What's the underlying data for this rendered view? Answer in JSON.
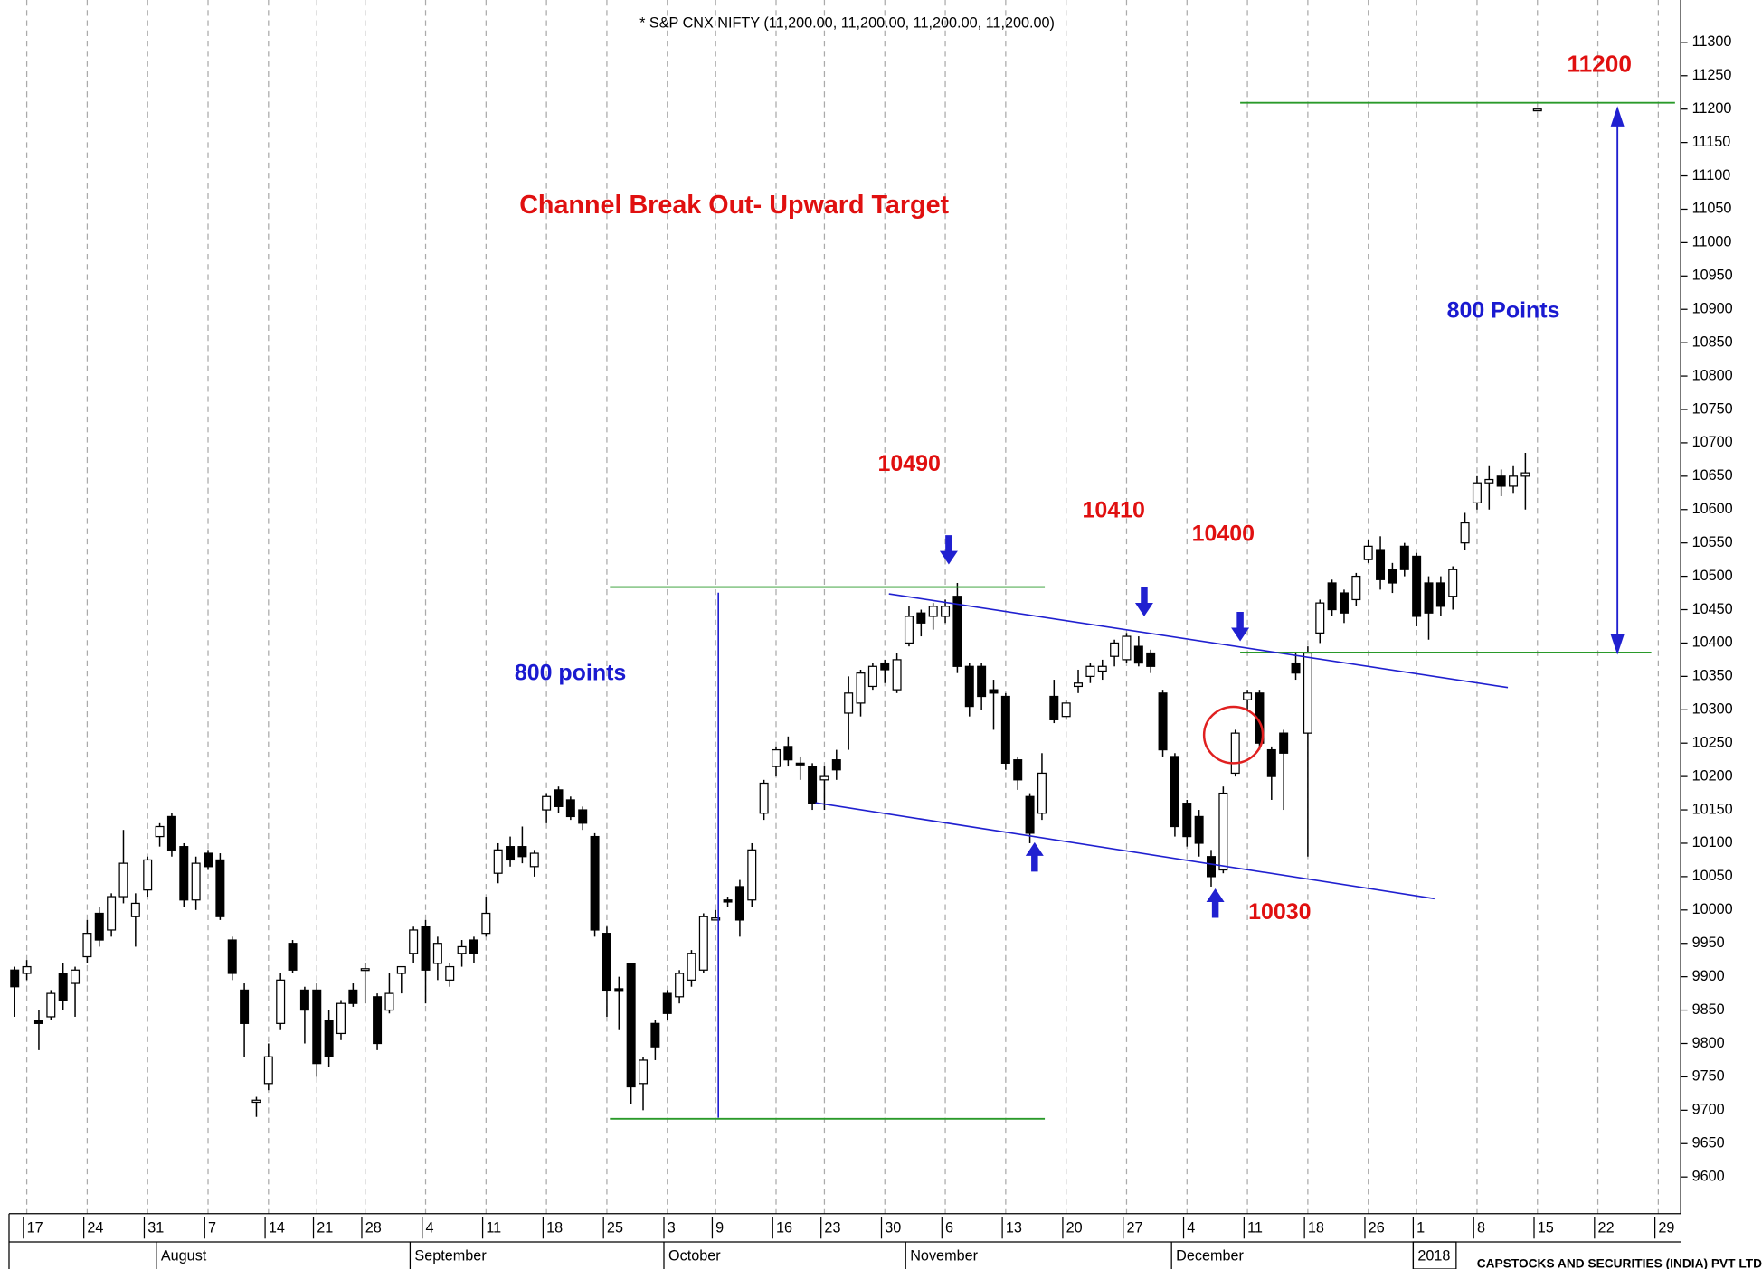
{
  "chart_data": {
    "type": "candlestick",
    "title": "* S&P CNX NIFTY (11,200.00, 11,200.00, 11,200.00, 11,200.00)",
    "annotations": [
      "Channel Break Out- Upward Target",
      "800 points",
      "800 Points",
      "10490",
      "10410",
      "10400",
      "10030",
      "11200"
    ],
    "footer": "CAPSTOCKS AND SECURITIES (INDIA) PVT LTD",
    "months": [
      "August",
      "September",
      "October",
      "November",
      "December",
      "2018"
    ],
    "categories": [
      null,
      "17",
      null,
      null,
      null,
      null,
      "24",
      null,
      null,
      null,
      null,
      "31",
      null,
      null,
      null,
      null,
      "7",
      null,
      null,
      null,
      null,
      "14",
      null,
      null,
      null,
      "21",
      null,
      null,
      null,
      "28",
      null,
      null,
      null,
      null,
      "4",
      null,
      null,
      null,
      null,
      "11",
      null,
      null,
      null,
      null,
      "18",
      null,
      null,
      null,
      null,
      "25",
      null,
      null,
      null,
      null,
      "3",
      null,
      null,
      null,
      "9",
      null,
      null,
      null,
      null,
      "16",
      null,
      null,
      null,
      "23",
      null,
      null,
      null,
      null,
      "30",
      null,
      null,
      null,
      null,
      "6",
      null,
      null,
      null,
      null,
      "13",
      null,
      null,
      null,
      null,
      "20",
      null,
      null,
      null,
      null,
      "27",
      null,
      null,
      null,
      null,
      "4",
      null,
      null,
      null,
      null,
      "11",
      null,
      null,
      null,
      null,
      "18",
      null,
      null,
      null,
      null,
      "26",
      null,
      null,
      null,
      "1",
      null,
      null,
      null,
      null,
      "8",
      null,
      null,
      null,
      null,
      "15",
      null,
      null,
      null,
      null,
      "22",
      null,
      null,
      null,
      null,
      "29",
      null
    ],
    "open": [
      9910,
      9905,
      9835,
      9840,
      9905,
      9890,
      9930,
      9995,
      9970,
      10020,
      9990,
      10030,
      10110,
      10140,
      10095,
      10015,
      10085,
      10075,
      9955,
      9880,
      9712,
      9740,
      9830,
      9950,
      9880,
      9880,
      9835,
      9815,
      9880,
      9910,
      9870,
      9850,
      9905,
      9935,
      9975,
      9920,
      9895,
      9935,
      9955,
      9965,
      10055,
      10095,
      10095,
      10065,
      10150,
      10180,
      10165,
      10150,
      10110,
      9965,
      9882,
      9920,
      9740,
      9830,
      9875,
      9870,
      9895,
      9910,
      9985,
      10015,
      10035,
      10015,
      10145,
      10215,
      10245,
      10220,
      10215,
      10195,
      10225,
      10295,
      10310,
      10335,
      10370,
      10330,
      10400,
      10445,
      10440,
      10440,
      10470,
      10365,
      10365,
      10330,
      10320,
      10225,
      10170,
      10145,
      10320,
      10290,
      10335,
      10350,
      10358,
      10380,
      10375,
      10395,
      10385,
      10325,
      10230,
      10160,
      10140,
      10080,
      10060,
      10205,
      10315,
      10325,
      10240,
      10265,
      10370,
      10265,
      10415,
      10490,
      10475,
      10465,
      10525,
      10540,
      10510,
      10545,
      10530,
      10490,
      10490,
      10470,
      10550,
      10610,
      10640,
      10650,
      10635,
      10650,
      11200,
      null,
      null,
      null,
      null,
      null,
      null,
      null,
      null,
      null,
      null,
      null
    ],
    "high": [
      9915,
      9925,
      9850,
      9880,
      9920,
      9915,
      9985,
      10005,
      10025,
      10120,
      10025,
      10080,
      10130,
      10145,
      10100,
      10080,
      10090,
      10085,
      9960,
      9890,
      9720,
      9800,
      9905,
      9955,
      9885,
      9890,
      9850,
      9865,
      9890,
      9920,
      9875,
      9905,
      9915,
      9975,
      9985,
      9960,
      9920,
      9955,
      9960,
      10020,
      10100,
      10110,
      10125,
      10090,
      10175,
      10185,
      10170,
      10155,
      10115,
      9975,
      9900,
      9920,
      9780,
      9835,
      9880,
      9910,
      9940,
      9995,
      10000,
      10020,
      10045,
      10100,
      10195,
      10245,
      10260,
      10230,
      10220,
      10215,
      10240,
      10350,
      10360,
      10370,
      10375,
      10385,
      10455,
      10450,
      10460,
      10465,
      10490,
      10370,
      10370,
      10345,
      10325,
      10230,
      10175,
      10235,
      10345,
      10315,
      10360,
      10370,
      10375,
      10405,
      10415,
      10410,
      10390,
      10330,
      10235,
      10165,
      10150,
      10090,
      10185,
      10270,
      10330,
      10330,
      10245,
      10270,
      10385,
      10395,
      10465,
      10495,
      10480,
      10505,
      10555,
      10560,
      10520,
      10550,
      10535,
      10500,
      10500,
      10515,
      10595,
      10650,
      10665,
      10660,
      10665,
      10685,
      11200,
      null,
      null,
      null,
      null,
      null,
      null,
      null,
      null,
      null,
      null,
      null
    ],
    "low": [
      9840,
      9895,
      9790,
      9835,
      9850,
      9840,
      9920,
      9945,
      9960,
      10010,
      9945,
      10020,
      10095,
      10080,
      10005,
      10000,
      10060,
      9985,
      9895,
      9780,
      9690,
      9730,
      9820,
      9905,
      9800,
      9750,
      9765,
      9805,
      9855,
      9860,
      9790,
      9845,
      9875,
      9920,
      9860,
      9895,
      9885,
      9915,
      9920,
      9960,
      10040,
      10065,
      10070,
      10050,
      10130,
      10145,
      10135,
      10120,
      9960,
      9840,
      9820,
      9710,
      9700,
      9775,
      9835,
      9860,
      9885,
      9905,
      9985,
      10005,
      9960,
      10005,
      10135,
      10200,
      10215,
      10195,
      10150,
      10150,
      10195,
      10240,
      10290,
      10330,
      10340,
      10325,
      10395,
      10410,
      10420,
      10430,
      10355,
      10290,
      10300,
      10270,
      10210,
      10180,
      10100,
      10135,
      10280,
      10285,
      10325,
      10340,
      10345,
      10365,
      10370,
      10365,
      10355,
      10230,
      10110,
      10095,
      10080,
      10035,
      10055,
      10200,
      10300,
      10240,
      10165,
      10150,
      10345,
      10080,
      10400,
      10440,
      10430,
      10455,
      10520,
      10480,
      10475,
      10500,
      10425,
      10405,
      10440,
      10450,
      10540,
      10600,
      10600,
      10620,
      10625,
      10600,
      11200,
      null,
      null,
      null,
      null,
      null,
      null,
      null,
      null,
      null,
      null,
      null
    ],
    "close": [
      9885,
      9915,
      9830,
      9875,
      9865,
      9910,
      9965,
      9955,
      10020,
      10070,
      10010,
      10075,
      10125,
      10090,
      10015,
      10070,
      10065,
      9990,
      9905,
      9830,
      9715,
      9780,
      9895,
      9910,
      9850,
      9770,
      9780,
      9860,
      9860,
      9912,
      9800,
      9875,
      9915,
      9970,
      9910,
      9950,
      9915,
      9945,
      9935,
      9995,
      10090,
      10075,
      10080,
      10085,
      10170,
      10155,
      10140,
      10130,
      9970,
      9880,
      9880,
      9735,
      9775,
      9795,
      9845,
      9905,
      9935,
      9990,
      9988,
      10012,
      9985,
      10090,
      10190,
      10240,
      10225,
      10218,
      10160,
      10200,
      10210,
      10325,
      10355,
      10365,
      10360,
      10375,
      10440,
      10430,
      10455,
      10455,
      10365,
      10305,
      10320,
      10325,
      10220,
      10195,
      10115,
      10205,
      10285,
      10310,
      10340,
      10365,
      10365,
      10400,
      10410,
      10370,
      10365,
      10240,
      10125,
      10110,
      10100,
      10050,
      10175,
      10265,
      10325,
      10250,
      10200,
      10235,
      10355,
      10385,
      10460,
      10450,
      10445,
      10500,
      10545,
      10495,
      10490,
      10510,
      10440,
      10445,
      10455,
      10510,
      10580,
      10640,
      10645,
      10635,
      10650,
      10655,
      11200,
      null,
      null,
      null,
      null,
      null,
      null,
      null,
      null,
      null,
      null,
      null
    ],
    "up_color": "#ffffff",
    "down_color": "#000000",
    "ylim": [
      9545,
      11355
    ],
    "yticks": [
      9600,
      9650,
      9700,
      9750,
      9800,
      9850,
      9900,
      9950,
      10000,
      10050,
      10100,
      10150,
      10200,
      10250,
      10300,
      10350,
      10400,
      10450,
      10500,
      10550,
      10600,
      10650,
      10700,
      10750,
      10800,
      10850,
      10900,
      10950,
      11000,
      11050,
      11100,
      11150,
      11200,
      11250,
      11300
    ],
    "grid": "x"
  }
}
